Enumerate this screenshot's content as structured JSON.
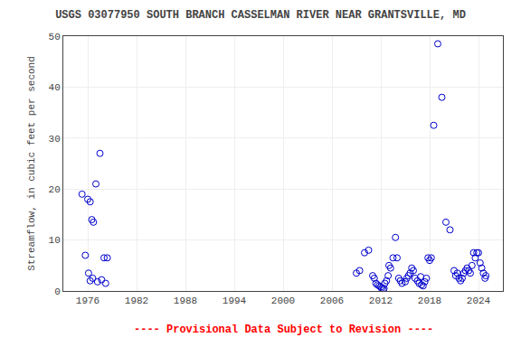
{
  "chart_data": {
    "type": "scatter",
    "title": "USGS 03077950 SOUTH BRANCH CASSELMAN RIVER NEAR GRANTSVILLE, MD",
    "ylabel": "Streamflow, in cubic feet per second",
    "annotations": [
      {
        "text": "---- Provisional Data Subject to Revision ----",
        "color": "red"
      }
    ],
    "color": "#0000cc",
    "marker": "circle-open",
    "grid": true,
    "xlim": [
      1973,
      2027
    ],
    "ylim": [
      0,
      50
    ],
    "xticks": [
      1976,
      1982,
      1988,
      1994,
      2000,
      2006,
      2012,
      2018,
      2024
    ],
    "yticks": [
      0,
      10,
      20,
      30,
      40,
      50
    ],
    "x": [
      1975.3,
      1975.7,
      1976.0,
      1976.3,
      1976.5,
      1976.7,
      1977.0,
      1977.5,
      1978.0,
      1978.4,
      1976.1,
      1976.3,
      1976.6,
      1977.2,
      1977.7,
      1978.2,
      2009.0,
      2009.4,
      2010.0,
      2010.5,
      2011.0,
      2011.2,
      2011.4,
      2011.6,
      2011.8,
      2012.0,
      2012.1,
      2012.3,
      2012.4,
      2012.5,
      2012.7,
      2012.9,
      2013.0,
      2013.2,
      2013.5,
      2013.8,
      2014.0,
      2014.2,
      2014.4,
      2014.6,
      2015.0,
      2015.2,
      2015.4,
      2015.6,
      2015.8,
      2016.0,
      2016.2,
      2016.5,
      2016.7,
      2016.9,
      2017.0,
      2017.2,
      2017.4,
      2017.6,
      2017.8,
      2018.0,
      2018.2,
      2018.5,
      2019.0,
      2019.5,
      2020.0,
      2020.5,
      2021.0,
      2021.2,
      2021.4,
      2021.6,
      2021.8,
      2022.0,
      2022.2,
      2022.4,
      2022.6,
      2022.8,
      2023.0,
      2023.2,
      2023.4,
      2023.6,
      2023.8,
      2024.0,
      2024.2,
      2024.4,
      2024.6,
      2024.8,
      2024.9
    ],
    "values": [
      19.0,
      7.0,
      18.0,
      17.5,
      14.0,
      13.5,
      21.0,
      27.0,
      6.5,
      6.5,
      3.5,
      2.0,
      2.5,
      1.8,
      2.2,
      1.5,
      3.5,
      4.0,
      7.5,
      8.0,
      3.0,
      2.5,
      1.5,
      1.2,
      1.0,
      0.8,
      0.5,
      0.3,
      0.5,
      1.5,
      2.0,
      3.0,
      5.0,
      4.5,
      6.5,
      10.5,
      6.5,
      2.5,
      2.0,
      1.5,
      1.8,
      2.5,
      3.0,
      3.5,
      4.5,
      4.0,
      2.5,
      2.0,
      1.5,
      2.8,
      1.2,
      1.0,
      1.8,
      2.5,
      6.5,
      6.0,
      6.5,
      32.5,
      48.5,
      38.0,
      13.5,
      12.0,
      4.0,
      3.0,
      3.5,
      2.5,
      2.0,
      2.5,
      3.5,
      4.0,
      4.5,
      4.0,
      3.5,
      5.0,
      7.5,
      6.5,
      7.5,
      7.5,
      5.5,
      4.5,
      3.5,
      2.5,
      3.0
    ]
  }
}
